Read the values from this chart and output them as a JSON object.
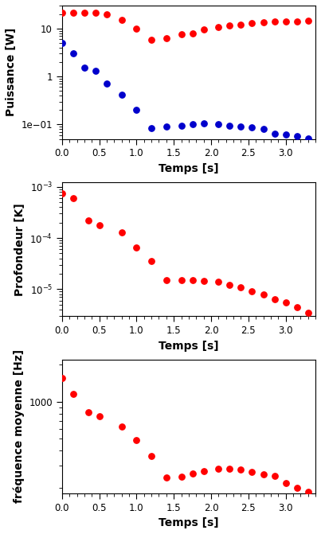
{
  "panel1": {
    "red_x": [
      0.0,
      0.15,
      0.3,
      0.45,
      0.6,
      0.8,
      1.0,
      1.2,
      1.4,
      1.6,
      1.75,
      1.9,
      2.1,
      2.25,
      2.4,
      2.55,
      2.7,
      2.85,
      3.0,
      3.15,
      3.3
    ],
    "red_y": [
      21.5,
      21.5,
      21.0,
      21.0,
      19.5,
      15.0,
      10.0,
      5.8,
      6.2,
      7.5,
      7.8,
      9.5,
      10.5,
      11.5,
      12.0,
      13.0,
      13.5,
      13.8,
      14.0,
      14.2,
      14.5
    ],
    "blue_x": [
      0.0,
      0.15,
      0.3,
      0.45,
      0.6,
      0.8,
      1.0,
      1.2,
      1.4,
      1.6,
      1.75,
      1.9,
      2.1,
      2.25,
      2.4,
      2.55,
      2.7,
      2.85,
      3.0,
      3.15,
      3.3
    ],
    "blue_y": [
      5.0,
      3.0,
      1.55,
      1.3,
      0.72,
      0.42,
      0.2,
      0.085,
      0.09,
      0.095,
      0.1,
      0.105,
      0.1,
      0.095,
      0.09,
      0.087,
      0.082,
      0.065,
      0.062,
      0.057,
      0.052
    ],
    "ylabel": "Puissance [W]",
    "xlabel": "Temps [s]",
    "ylim": [
      0.05,
      30
    ],
    "xlim": [
      0.0,
      3.4
    ]
  },
  "panel2": {
    "red_x": [
      0.0,
      0.15,
      0.35,
      0.5,
      0.8,
      1.0,
      1.2,
      1.4,
      1.6,
      1.75,
      1.9,
      2.1,
      2.25,
      2.4,
      2.55,
      2.7,
      2.85,
      3.0,
      3.15,
      3.3
    ],
    "red_y": [
      0.00075,
      0.0006,
      0.00022,
      0.00018,
      0.00013,
      6.5e-05,
      3.5e-05,
      1.5e-05,
      1.5e-05,
      1.48e-05,
      1.45e-05,
      1.4e-05,
      1.2e-05,
      1.1e-05,
      9e-06,
      8e-06,
      6.5e-06,
      5.5e-06,
      4.5e-06,
      3.5e-06
    ],
    "ylabel": "Profondeur [K]",
    "xlabel": "Temps [s]",
    "ylim": [
      3e-06,
      0.0012
    ],
    "xlim": [
      0.0,
      3.4
    ]
  },
  "panel3": {
    "red_x": [
      0.0,
      0.15,
      0.35,
      0.5,
      0.8,
      1.0,
      1.2,
      1.4,
      1.6,
      1.75,
      1.9,
      2.1,
      2.25,
      2.4,
      2.55,
      2.7,
      2.85,
      3.0,
      3.15,
      3.3
    ],
    "red_y": [
      1550,
      1150,
      820,
      760,
      630,
      490,
      360,
      240,
      245,
      262,
      274,
      283,
      285,
      282,
      268,
      258,
      248,
      218,
      198,
      185
    ],
    "ylabel": "fréquence moyenne [Hz]",
    "xlabel": "Temps [s]",
    "ylim": [
      180,
      2200
    ],
    "xlim": [
      0.0,
      3.4
    ]
  },
  "dot_color_red": "#ff0000",
  "dot_color_blue": "#0000cc",
  "dot_size": 28,
  "bg_color": "#ffffff",
  "tick_label_size": 8.5,
  "axis_label_size": 10,
  "axis_label_weight": "bold"
}
